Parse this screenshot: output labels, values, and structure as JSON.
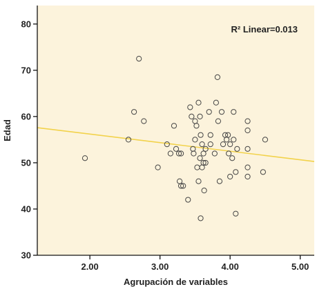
{
  "chart_data": {
    "type": "scatter",
    "xlabel": "Agrupación de variables",
    "ylabel": "Edad",
    "xlim": [
      1.25,
      5.2
    ],
    "ylim": [
      30,
      84
    ],
    "x_ticks": [
      2.0,
      3.0,
      4.0,
      5.0
    ],
    "x_tick_labels": [
      "2.00",
      "3.00",
      "4.00",
      "5.00"
    ],
    "y_ticks": [
      30,
      40,
      50,
      60,
      70,
      80
    ],
    "y_tick_labels": [
      "30",
      "40",
      "50",
      "60",
      "70",
      "80"
    ],
    "annotation": "R² Linear=0.013",
    "grid": false,
    "colors": {
      "plot_background": "#fcf3dc",
      "marker_edge": "#444444",
      "fit_line": "#f2d24a",
      "axis": "#111111"
    },
    "fit_line": {
      "intercept": 59.9,
      "slope": -1.85
    },
    "points": [
      {
        "x": 1.93,
        "y": 51
      },
      {
        "x": 2.55,
        "y": 55
      },
      {
        "x": 2.63,
        "y": 61
      },
      {
        "x": 2.7,
        "y": 72.5
      },
      {
        "x": 2.77,
        "y": 59
      },
      {
        "x": 2.97,
        "y": 49
      },
      {
        "x": 3.1,
        "y": 54
      },
      {
        "x": 3.15,
        "y": 52
      },
      {
        "x": 3.2,
        "y": 58
      },
      {
        "x": 3.23,
        "y": 53
      },
      {
        "x": 3.27,
        "y": 52
      },
      {
        "x": 3.3,
        "y": 52
      },
      {
        "x": 3.28,
        "y": 46
      },
      {
        "x": 3.3,
        "y": 45
      },
      {
        "x": 3.33,
        "y": 45
      },
      {
        "x": 3.4,
        "y": 42
      },
      {
        "x": 3.43,
        "y": 62
      },
      {
        "x": 3.45,
        "y": 60
      },
      {
        "x": 3.47,
        "y": 53
      },
      {
        "x": 3.48,
        "y": 52
      },
      {
        "x": 3.5,
        "y": 59
      },
      {
        "x": 3.5,
        "y": 55
      },
      {
        "x": 3.52,
        "y": 58
      },
      {
        "x": 3.53,
        "y": 49
      },
      {
        "x": 3.55,
        "y": 46
      },
      {
        "x": 3.55,
        "y": 63
      },
      {
        "x": 3.57,
        "y": 60
      },
      {
        "x": 3.57,
        "y": 51
      },
      {
        "x": 3.58,
        "y": 56
      },
      {
        "x": 3.58,
        "y": 38
      },
      {
        "x": 3.6,
        "y": 54
      },
      {
        "x": 3.62,
        "y": 52
      },
      {
        "x": 3.6,
        "y": 49
      },
      {
        "x": 3.62,
        "y": 50
      },
      {
        "x": 3.63,
        "y": 44
      },
      {
        "x": 3.65,
        "y": 53
      },
      {
        "x": 3.65,
        "y": 50
      },
      {
        "x": 3.7,
        "y": 61
      },
      {
        "x": 3.72,
        "y": 54
      },
      {
        "x": 3.72,
        "y": 56
      },
      {
        "x": 3.78,
        "y": 52
      },
      {
        "x": 3.8,
        "y": 63
      },
      {
        "x": 3.82,
        "y": 68.5
      },
      {
        "x": 3.83,
        "y": 59
      },
      {
        "x": 3.85,
        "y": 46
      },
      {
        "x": 3.88,
        "y": 61
      },
      {
        "x": 3.9,
        "y": 54
      },
      {
        "x": 3.93,
        "y": 56
      },
      {
        "x": 3.95,
        "y": 55
      },
      {
        "x": 3.97,
        "y": 56
      },
      {
        "x": 3.98,
        "y": 52
      },
      {
        "x": 4.0,
        "y": 54
      },
      {
        "x": 4.0,
        "y": 47
      },
      {
        "x": 4.03,
        "y": 51
      },
      {
        "x": 4.05,
        "y": 55
      },
      {
        "x": 4.05,
        "y": 61
      },
      {
        "x": 4.08,
        "y": 48
      },
      {
        "x": 4.08,
        "y": 39
      },
      {
        "x": 4.1,
        "y": 53
      },
      {
        "x": 4.25,
        "y": 59
      },
      {
        "x": 4.25,
        "y": 57
      },
      {
        "x": 4.25,
        "y": 53
      },
      {
        "x": 4.25,
        "y": 49
      },
      {
        "x": 4.25,
        "y": 47
      },
      {
        "x": 4.47,
        "y": 48
      },
      {
        "x": 4.5,
        "y": 55
      }
    ]
  }
}
